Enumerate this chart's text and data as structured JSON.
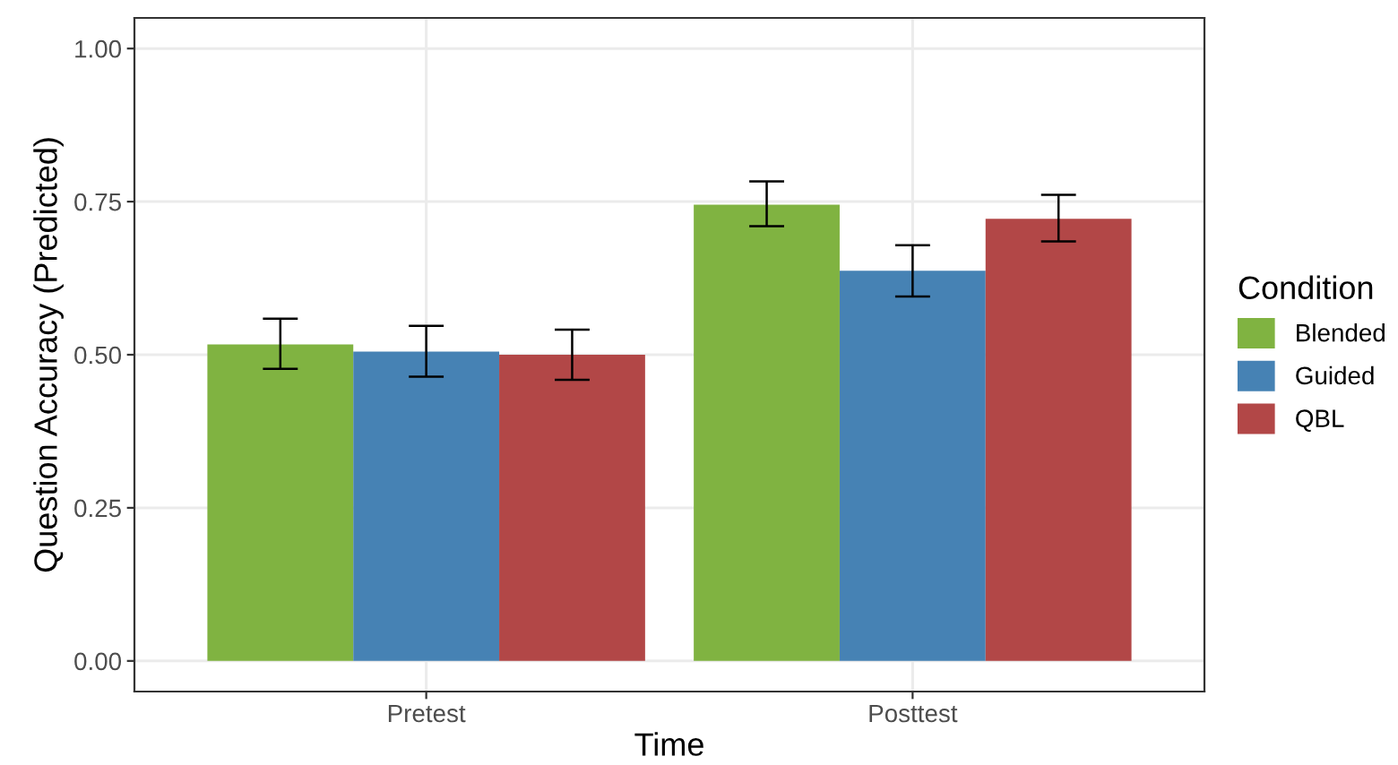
{
  "chart_data": {
    "type": "bar",
    "xlabel": "Time",
    "ylabel": "Question Accuracy (Predicted)",
    "legend_title": "Condition",
    "categories": [
      "Pretest",
      "Posttest"
    ],
    "series": [
      {
        "name": "Blended",
        "color": "#80b341",
        "values": [
          0.517,
          0.745
        ],
        "errors": [
          [
            0.477,
            0.559
          ],
          [
            0.71,
            0.783
          ]
        ]
      },
      {
        "name": "Guided",
        "color": "#4682b4",
        "values": [
          0.505,
          0.637
        ],
        "errors": [
          [
            0.464,
            0.547
          ],
          [
            0.595,
            0.679
          ]
        ]
      },
      {
        "name": "QBL",
        "color": "#b24747",
        "values": [
          0.5,
          0.722
        ],
        "errors": [
          [
            0.459,
            0.541
          ],
          [
            0.685,
            0.761
          ]
        ]
      }
    ],
    "ylim": [
      -0.05,
      1.05
    ],
    "yticks": [
      {
        "value": 0,
        "label": "0.00"
      },
      {
        "value": 0.25,
        "label": "0.25"
      },
      {
        "value": 0.5,
        "label": "0.50"
      },
      {
        "value": 0.75,
        "label": "0.75"
      },
      {
        "value": 1,
        "label": "1.00"
      }
    ],
    "grid": true,
    "legend": "right"
  }
}
